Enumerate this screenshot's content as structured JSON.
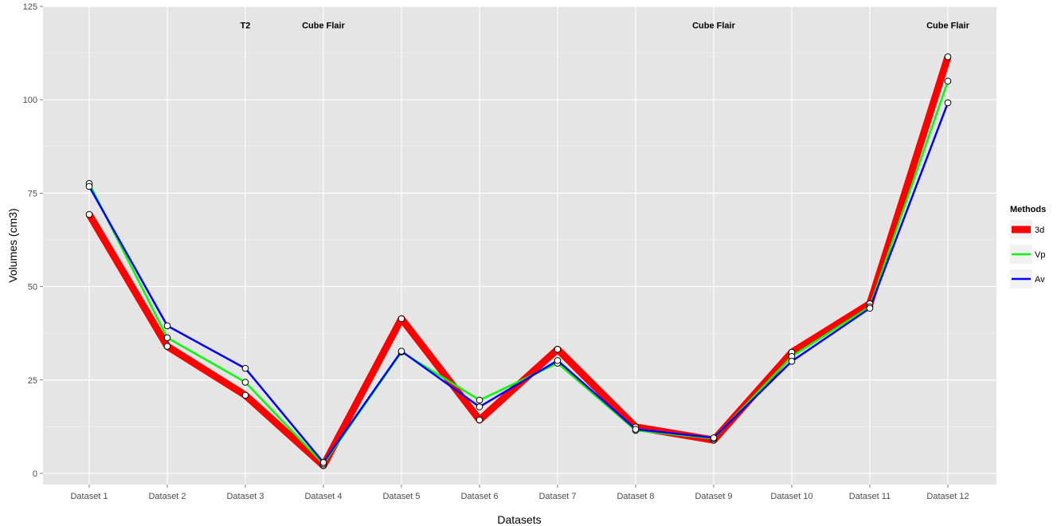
{
  "chart_data": {
    "type": "line",
    "xlabel": "Datasets",
    "ylabel": "Volumes (cm3)",
    "ylim": [
      -3,
      125
    ],
    "y_ticks": [
      0,
      25,
      50,
      75,
      100,
      125
    ],
    "grid": true,
    "legend_position": "right",
    "legend_title": "Methods",
    "categories": [
      "Dataset 1",
      "Dataset 2",
      "Dataset 3",
      "Dataset 4",
      "Dataset 5",
      "Dataset 6",
      "Dataset 7",
      "Dataset 8",
      "Dataset 9",
      "Dataset 10",
      "Dataset 11",
      "Dataset 12"
    ],
    "series": [
      {
        "name": "3d",
        "color": "#ff0000",
        "values": [
          69.3,
          34.0,
          20.9,
          2.1,
          41.4,
          14.3,
          33.2,
          12.4,
          8.9,
          32.4,
          45.4,
          111.5
        ]
      },
      {
        "name": "Vp",
        "color": "#00ff00",
        "values": [
          77.6,
          36.3,
          24.4,
          2.5,
          32.5,
          19.6,
          29.5,
          11.5,
          9.3,
          31.3,
          44.6,
          105.0
        ]
      },
      {
        "name": "Av",
        "color": "#0000ff",
        "values": [
          76.8,
          39.5,
          28.1,
          2.9,
          32.7,
          17.8,
          30.2,
          11.8,
          9.5,
          30.0,
          44.2,
          99.2
        ]
      }
    ],
    "annotations": [
      {
        "text": "T2",
        "x": "Dataset 3",
        "y": 120
      },
      {
        "text": "Cube Flair",
        "x": "Dataset 4",
        "y": 120
      },
      {
        "text": "Cube Flair",
        "x": "Dataset 9",
        "y": 120
      },
      {
        "text": "Cube Flair",
        "x": "Dataset 12",
        "y": 120
      }
    ]
  }
}
